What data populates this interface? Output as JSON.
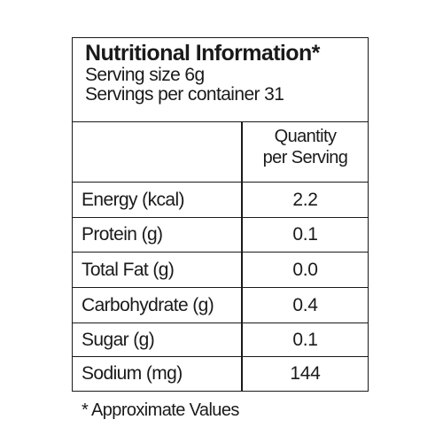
{
  "header": {
    "title": "Nutritional Information*",
    "serving_size": "Serving size 6g",
    "servings_per_container": "Servings per container 31"
  },
  "table": {
    "column_header_line1": "Quantity",
    "column_header_line2": "per Serving",
    "rows": [
      {
        "label": "Energy (kcal)",
        "value": "2.2"
      },
      {
        "label": "Protein (g)",
        "value": "0.1"
      },
      {
        "label": "Total Fat (g)",
        "value": "0.0"
      },
      {
        "label": "Carbohydrate (g)",
        "value": "0.4"
      },
      {
        "label": "Sugar (g)",
        "value": "0.1"
      },
      {
        "label": "Sodium (mg)",
        "value": "144"
      }
    ]
  },
  "footnote": "* Approximate Values"
}
